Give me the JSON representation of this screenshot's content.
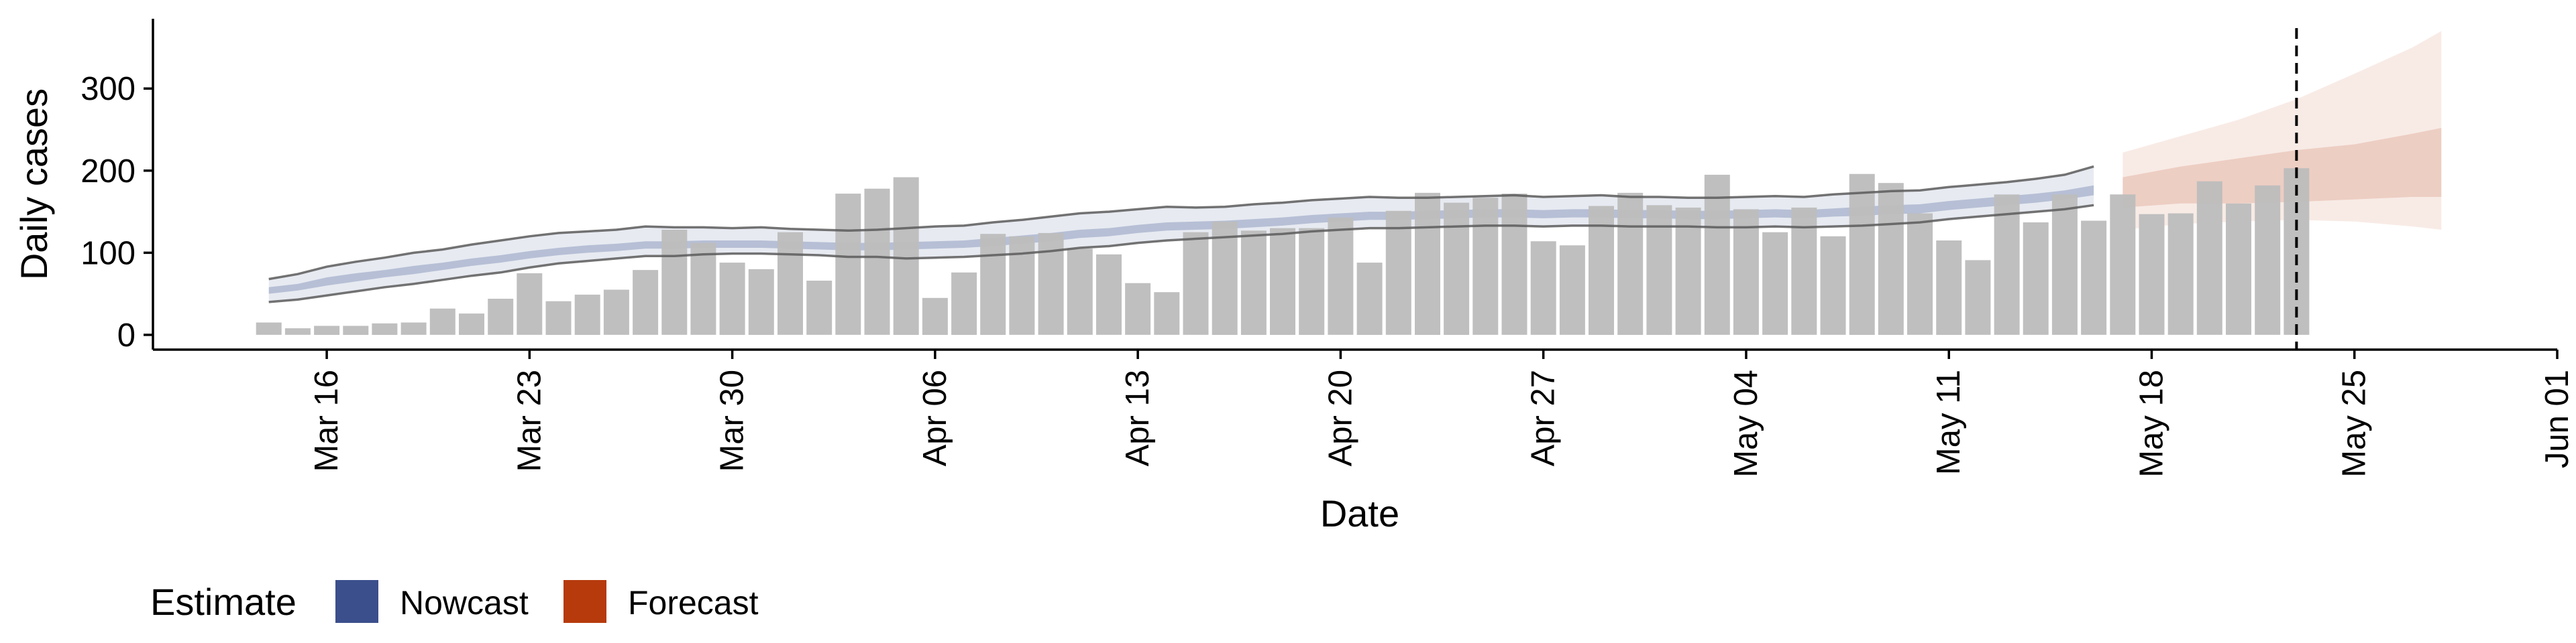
{
  "chart_data": {
    "type": "bar",
    "title": "",
    "xlabel": "Date",
    "ylabel": "Daily cases",
    "xlim": [
      "2020-03-10",
      "2020-06-01"
    ],
    "ylim": [
      -18,
      385
    ],
    "yticks": [
      0,
      100,
      200,
      300
    ],
    "xticks": [
      {
        "date": "2020-03-16",
        "label": "Mar 16"
      },
      {
        "date": "2020-03-23",
        "label": "Mar 23"
      },
      {
        "date": "2020-03-30",
        "label": "Mar 30"
      },
      {
        "date": "2020-04-06",
        "label": "Apr 06"
      },
      {
        "date": "2020-04-13",
        "label": "Apr 13"
      },
      {
        "date": "2020-04-20",
        "label": "Apr 20"
      },
      {
        "date": "2020-04-27",
        "label": "Apr 27"
      },
      {
        "date": "2020-05-04",
        "label": "May 04"
      },
      {
        "date": "2020-05-11",
        "label": "May 11"
      },
      {
        "date": "2020-05-18",
        "label": "May 18"
      },
      {
        "date": "2020-05-25",
        "label": "May 25"
      },
      {
        "date": "2020-06-01",
        "label": "Jun 01"
      }
    ],
    "grid": false,
    "bars": {
      "dates": [
        "2020-03-14",
        "2020-03-15",
        "2020-03-16",
        "2020-03-17",
        "2020-03-18",
        "2020-03-19",
        "2020-03-20",
        "2020-03-21",
        "2020-03-22",
        "2020-03-23",
        "2020-03-24",
        "2020-03-25",
        "2020-03-26",
        "2020-03-27",
        "2020-03-28",
        "2020-03-29",
        "2020-03-30",
        "2020-03-31",
        "2020-04-01",
        "2020-04-02",
        "2020-04-03",
        "2020-04-04",
        "2020-04-05",
        "2020-04-06",
        "2020-04-07",
        "2020-04-08",
        "2020-04-09",
        "2020-04-10",
        "2020-04-11",
        "2020-04-12",
        "2020-04-13",
        "2020-04-14",
        "2020-04-15",
        "2020-04-16",
        "2020-04-17",
        "2020-04-18",
        "2020-04-19",
        "2020-04-20",
        "2020-04-21",
        "2020-04-22",
        "2020-04-23",
        "2020-04-24",
        "2020-04-25",
        "2020-04-26",
        "2020-04-27",
        "2020-04-28",
        "2020-04-29",
        "2020-04-30",
        "2020-05-01",
        "2020-05-02",
        "2020-05-03",
        "2020-05-04",
        "2020-05-05",
        "2020-05-06",
        "2020-05-07",
        "2020-05-08",
        "2020-05-09",
        "2020-05-10",
        "2020-05-11",
        "2020-05-12",
        "2020-05-13",
        "2020-05-14",
        "2020-05-15",
        "2020-05-16",
        "2020-05-17",
        "2020-05-18",
        "2020-05-19",
        "2020-05-20",
        "2020-05-21",
        "2020-05-22",
        "2020-05-23"
      ],
      "values": [
        15,
        8,
        11,
        11,
        14,
        15,
        32,
        26,
        44,
        75,
        41,
        49,
        55,
        79,
        128,
        112,
        88,
        80,
        125,
        66,
        172,
        178,
        192,
        45,
        76,
        123,
        120,
        124,
        105,
        98,
        63,
        52,
        125,
        138,
        127,
        130,
        130,
        143,
        88,
        151,
        173,
        161,
        167,
        172,
        114,
        109,
        157,
        173,
        158,
        155,
        195,
        153,
        125,
        155,
        120,
        196,
        185,
        148,
        115,
        91,
        171,
        137,
        171,
        139,
        171,
        147,
        148,
        187,
        160,
        182,
        203
      ],
      "color": "#bdbdbd"
    },
    "nowcast": {
      "name": "Nowcast",
      "color": "#3b4f8c",
      "dates": [
        "2020-03-14",
        "2020-03-15",
        "2020-03-16",
        "2020-03-17",
        "2020-03-18",
        "2020-03-19",
        "2020-03-20",
        "2020-03-21",
        "2020-03-22",
        "2020-03-23",
        "2020-03-24",
        "2020-03-25",
        "2020-03-26",
        "2020-03-27",
        "2020-03-28",
        "2020-03-29",
        "2020-03-30",
        "2020-03-31",
        "2020-04-01",
        "2020-04-02",
        "2020-04-03",
        "2020-04-04",
        "2020-04-05",
        "2020-04-06",
        "2020-04-07",
        "2020-04-08",
        "2020-04-09",
        "2020-04-10",
        "2020-04-11",
        "2020-04-12",
        "2020-04-13",
        "2020-04-14",
        "2020-04-15",
        "2020-04-16",
        "2020-04-17",
        "2020-04-18",
        "2020-04-19",
        "2020-04-20",
        "2020-04-21",
        "2020-04-22",
        "2020-04-23",
        "2020-04-24",
        "2020-04-25",
        "2020-04-26",
        "2020-04-27",
        "2020-04-28",
        "2020-04-29",
        "2020-04-30",
        "2020-05-01",
        "2020-05-02",
        "2020-05-03",
        "2020-05-04",
        "2020-05-05",
        "2020-05-06",
        "2020-05-07",
        "2020-05-08",
        "2020-05-09",
        "2020-05-10",
        "2020-05-11",
        "2020-05-12",
        "2020-05-13",
        "2020-05-14",
        "2020-05-15",
        "2020-05-16"
      ],
      "upper90": [
        68,
        74,
        83,
        89,
        94,
        100,
        104,
        110,
        115,
        120,
        124,
        126,
        128,
        132,
        131,
        131,
        130,
        131,
        129,
        128,
        127,
        128,
        130,
        132,
        133,
        137,
        140,
        144,
        148,
        150,
        153,
        156,
        155,
        156,
        159,
        161,
        164,
        166,
        168,
        167,
        167,
        168,
        169,
        170,
        168,
        169,
        170,
        168,
        168,
        167,
        167,
        168,
        169,
        168,
        171,
        173,
        175,
        176,
        180,
        183,
        186,
        190,
        195,
        205
      ],
      "lower90": [
        40,
        43,
        48,
        53,
        58,
        62,
        67,
        72,
        76,
        82,
        87,
        90,
        93,
        96,
        96,
        98,
        99,
        99,
        98,
        97,
        95,
        95,
        93,
        94,
        95,
        97,
        99,
        102,
        106,
        108,
        112,
        115,
        117,
        119,
        121,
        123,
        126,
        128,
        130,
        130,
        131,
        132,
        133,
        133,
        132,
        133,
        133,
        132,
        132,
        132,
        131,
        131,
        132,
        131,
        132,
        133,
        135,
        137,
        141,
        144,
        147,
        150,
        153,
        158
      ],
      "upper50": [
        58,
        62,
        70,
        75,
        79,
        84,
        88,
        93,
        97,
        102,
        106,
        109,
        111,
        114,
        114,
        115,
        115,
        115,
        114,
        113,
        112,
        112,
        113,
        114,
        115,
        118,
        121,
        124,
        128,
        130,
        134,
        137,
        138,
        139,
        141,
        143,
        146,
        148,
        150,
        150,
        151,
        152,
        153,
        153,
        152,
        153,
        153,
        152,
        152,
        151,
        151,
        152,
        153,
        152,
        154,
        156,
        158,
        159,
        163,
        166,
        169,
        172,
        176,
        182
      ],
      "lower50": [
        50,
        54,
        60,
        65,
        70,
        74,
        79,
        84,
        88,
        93,
        97,
        100,
        102,
        105,
        105,
        106,
        106,
        106,
        105,
        104,
        103,
        103,
        104,
        105,
        106,
        108,
        111,
        114,
        118,
        120,
        124,
        127,
        128,
        129,
        131,
        133,
        136,
        138,
        140,
        140,
        141,
        142,
        143,
        143,
        142,
        143,
        143,
        142,
        142,
        141,
        141,
        142,
        143,
        142,
        144,
        145,
        147,
        148,
        152,
        155,
        158,
        161,
        165,
        170
      ]
    },
    "forecast": {
      "name": "Forecast",
      "color": "#b63a0c",
      "dates": [
        "2020-05-17",
        "2020-05-19",
        "2020-05-21",
        "2020-05-23",
        "2020-05-25",
        "2020-05-27",
        "2020-05-28"
      ],
      "upper90": [
        222,
        242,
        262,
        287,
        318,
        350,
        370
      ],
      "lower90": [
        128,
        135,
        138,
        140,
        138,
        132,
        128
      ],
      "upper50": [
        192,
        205,
        215,
        225,
        232,
        245,
        252
      ],
      "lower50": [
        155,
        160,
        160,
        162,
        165,
        168,
        168
      ]
    },
    "vline": {
      "date": "2020-05-23",
      "style": "dashed"
    },
    "legend": {
      "title": "Estimate",
      "position": "bottom-left",
      "items": [
        "Nowcast",
        "Forecast"
      ]
    }
  }
}
